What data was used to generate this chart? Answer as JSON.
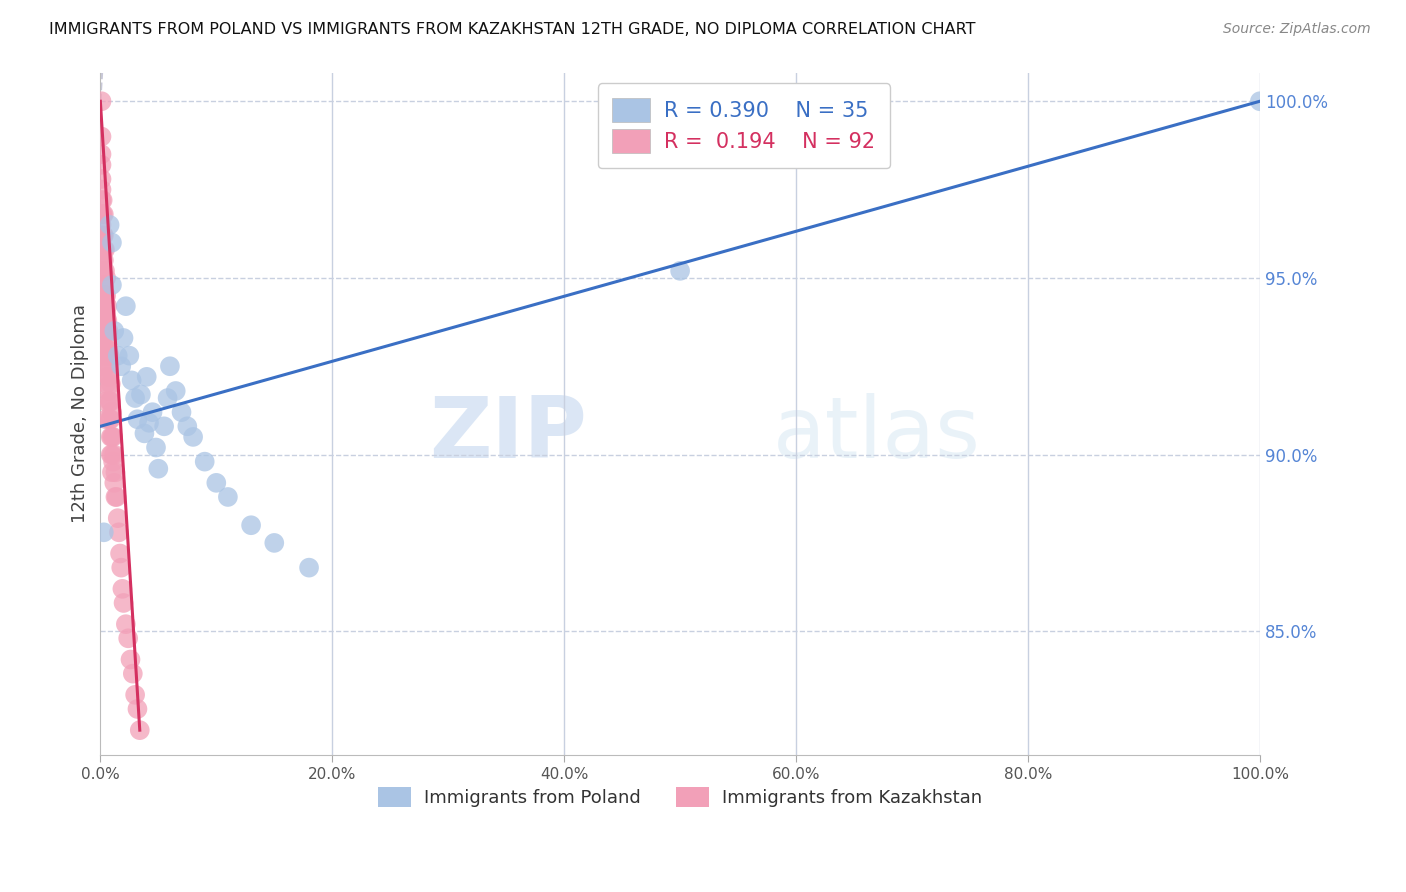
{
  "title": "IMMIGRANTS FROM POLAND VS IMMIGRANTS FROM KAZAKHSTAN 12TH GRADE, NO DIPLOMA CORRELATION CHART",
  "source": "Source: ZipAtlas.com",
  "ylabel": "12th Grade, No Diploma",
  "legend_poland_r": "0.390",
  "legend_poland_n": "35",
  "legend_kazakhstan_r": "0.194",
  "legend_kazakhstan_n": "92",
  "watermark_zip": "ZIP",
  "watermark_atlas": "atlas",
  "poland_color": "#aac4e4",
  "kazakhstan_color": "#f2a0b8",
  "poland_line_color": "#3a6fc4",
  "kazakhstan_line_color": "#d43060",
  "kazakhstan_dash_color": "#c8c8d8",
  "right_axis_color": "#5585d5",
  "poland_x": [
    0.003,
    0.008,
    0.01,
    0.01,
    0.012,
    0.015,
    0.018,
    0.02,
    0.022,
    0.025,
    0.027,
    0.03,
    0.032,
    0.035,
    0.038,
    0.04,
    0.042,
    0.045,
    0.048,
    0.05,
    0.055,
    0.058,
    0.06,
    0.065,
    0.07,
    0.075,
    0.08,
    0.09,
    0.1,
    0.11,
    0.13,
    0.15,
    0.18,
    0.5,
    1.0
  ],
  "poland_y": [
    0.878,
    0.965,
    0.96,
    0.948,
    0.935,
    0.928,
    0.925,
    0.933,
    0.942,
    0.928,
    0.921,
    0.916,
    0.91,
    0.917,
    0.906,
    0.922,
    0.909,
    0.912,
    0.902,
    0.896,
    0.908,
    0.916,
    0.925,
    0.918,
    0.912,
    0.908,
    0.905,
    0.898,
    0.892,
    0.888,
    0.88,
    0.875,
    0.868,
    0.952,
    1.0
  ],
  "kazakhstan_x": [
    0.001,
    0.001,
    0.001,
    0.001,
    0.001,
    0.001,
    0.001,
    0.001,
    0.001,
    0.001,
    0.001,
    0.001,
    0.002,
    0.002,
    0.002,
    0.002,
    0.002,
    0.002,
    0.002,
    0.002,
    0.002,
    0.002,
    0.002,
    0.002,
    0.002,
    0.002,
    0.003,
    0.003,
    0.003,
    0.003,
    0.003,
    0.003,
    0.003,
    0.003,
    0.003,
    0.004,
    0.004,
    0.004,
    0.004,
    0.004,
    0.004,
    0.004,
    0.005,
    0.005,
    0.005,
    0.005,
    0.005,
    0.005,
    0.005,
    0.005,
    0.005,
    0.006,
    0.006,
    0.006,
    0.006,
    0.007,
    0.007,
    0.007,
    0.007,
    0.008,
    0.008,
    0.008,
    0.008,
    0.009,
    0.009,
    0.009,
    0.009,
    0.009,
    0.01,
    0.01,
    0.01,
    0.01,
    0.011,
    0.011,
    0.012,
    0.012,
    0.013,
    0.013,
    0.014,
    0.015,
    0.016,
    0.017,
    0.018,
    0.019,
    0.02,
    0.022,
    0.024,
    0.026,
    0.028,
    0.03,
    0.032,
    0.034
  ],
  "kazakhstan_y": [
    1.0,
    0.99,
    0.985,
    0.982,
    0.978,
    0.975,
    0.972,
    0.968,
    0.965,
    0.962,
    0.958,
    0.955,
    0.972,
    0.968,
    0.962,
    0.958,
    0.955,
    0.952,
    0.948,
    0.945,
    0.942,
    0.938,
    0.935,
    0.932,
    0.928,
    0.925,
    0.968,
    0.962,
    0.958,
    0.955,
    0.948,
    0.945,
    0.94,
    0.935,
    0.93,
    0.958,
    0.952,
    0.945,
    0.94,
    0.935,
    0.93,
    0.925,
    0.95,
    0.945,
    0.94,
    0.935,
    0.93,
    0.925,
    0.92,
    0.915,
    0.91,
    0.942,
    0.938,
    0.932,
    0.928,
    0.935,
    0.928,
    0.922,
    0.918,
    0.928,
    0.922,
    0.915,
    0.91,
    0.92,
    0.915,
    0.91,
    0.905,
    0.9,
    0.912,
    0.905,
    0.9,
    0.895,
    0.905,
    0.898,
    0.9,
    0.892,
    0.895,
    0.888,
    0.888,
    0.882,
    0.878,
    0.872,
    0.868,
    0.862,
    0.858,
    0.852,
    0.848,
    0.842,
    0.838,
    0.832,
    0.828,
    0.822
  ],
  "xlim": [
    0.0,
    1.0
  ],
  "ylim": [
    0.815,
    1.008
  ],
  "right_yticks": [
    0.85,
    0.9,
    0.95,
    1.0
  ],
  "right_yticklabels": [
    "85.0%",
    "90.0%",
    "95.0%",
    "100.0%"
  ],
  "xtick_positions": [
    0.0,
    0.2,
    0.4,
    0.6,
    0.8,
    1.0
  ],
  "xtick_labels": [
    "0.0%",
    "20.0%",
    "40.0%",
    "60.0%",
    "80.0%",
    "100.0%"
  ],
  "grid_color": "#c8d0e0",
  "background_color": "#ffffff",
  "poland_trend_x0": 0.0,
  "poland_trend_y0": 0.908,
  "poland_trend_x1": 1.0,
  "poland_trend_y1": 1.0,
  "kaz_trend_x0": 0.0,
  "kaz_trend_y0": 1.0,
  "kaz_trend_x1": 0.034,
  "kaz_trend_y1": 0.822
}
